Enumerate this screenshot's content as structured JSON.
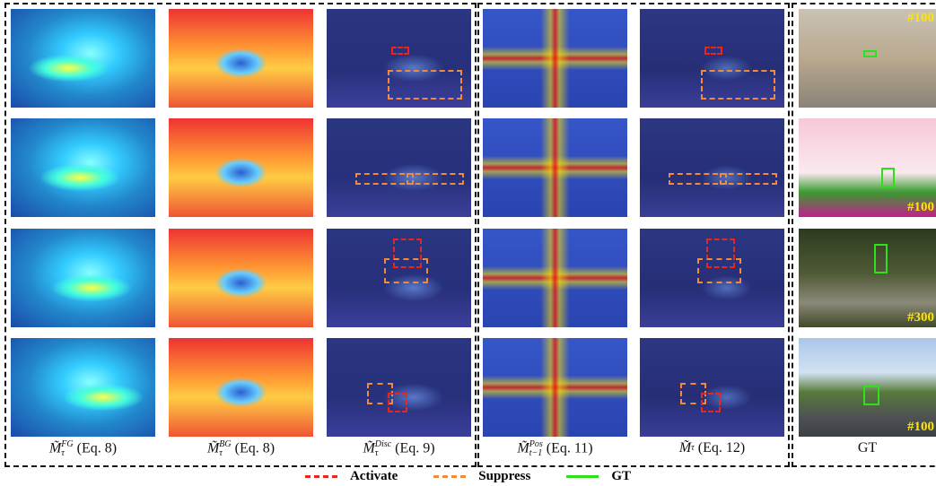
{
  "columns": [
    {
      "symbol": "M̃",
      "sub": "τ",
      "sup": "FG",
      "eq": "(Eq. 8)"
    },
    {
      "symbol": "M̃",
      "sub": "τ",
      "sup": "BG",
      "eq": "(Eq. 8)"
    },
    {
      "symbol": "M̃",
      "sub": "τ",
      "sup": "Disc",
      "eq": "(Eq. 9)"
    },
    {
      "symbol": "M̃",
      "sub": "t−1",
      "sup": "Pos",
      "eq": "(Eq. 11)"
    },
    {
      "symbol": "M̃",
      "sub": "τ",
      "sup": "",
      "eq": "(Eq. 12)"
    },
    {
      "symbol": "GT",
      "sub": "",
      "sup": "",
      "eq": ""
    }
  ],
  "frames": [
    "#100",
    "#100",
    "#300",
    "#100"
  ],
  "legend": [
    {
      "label": "Activate",
      "color": "#e8261e",
      "style": "dashed"
    },
    {
      "label": "Suppress",
      "color": "#f28a3a",
      "style": "dashed"
    },
    {
      "label": "GT",
      "color": "#2fe01a",
      "style": "solid"
    }
  ]
}
